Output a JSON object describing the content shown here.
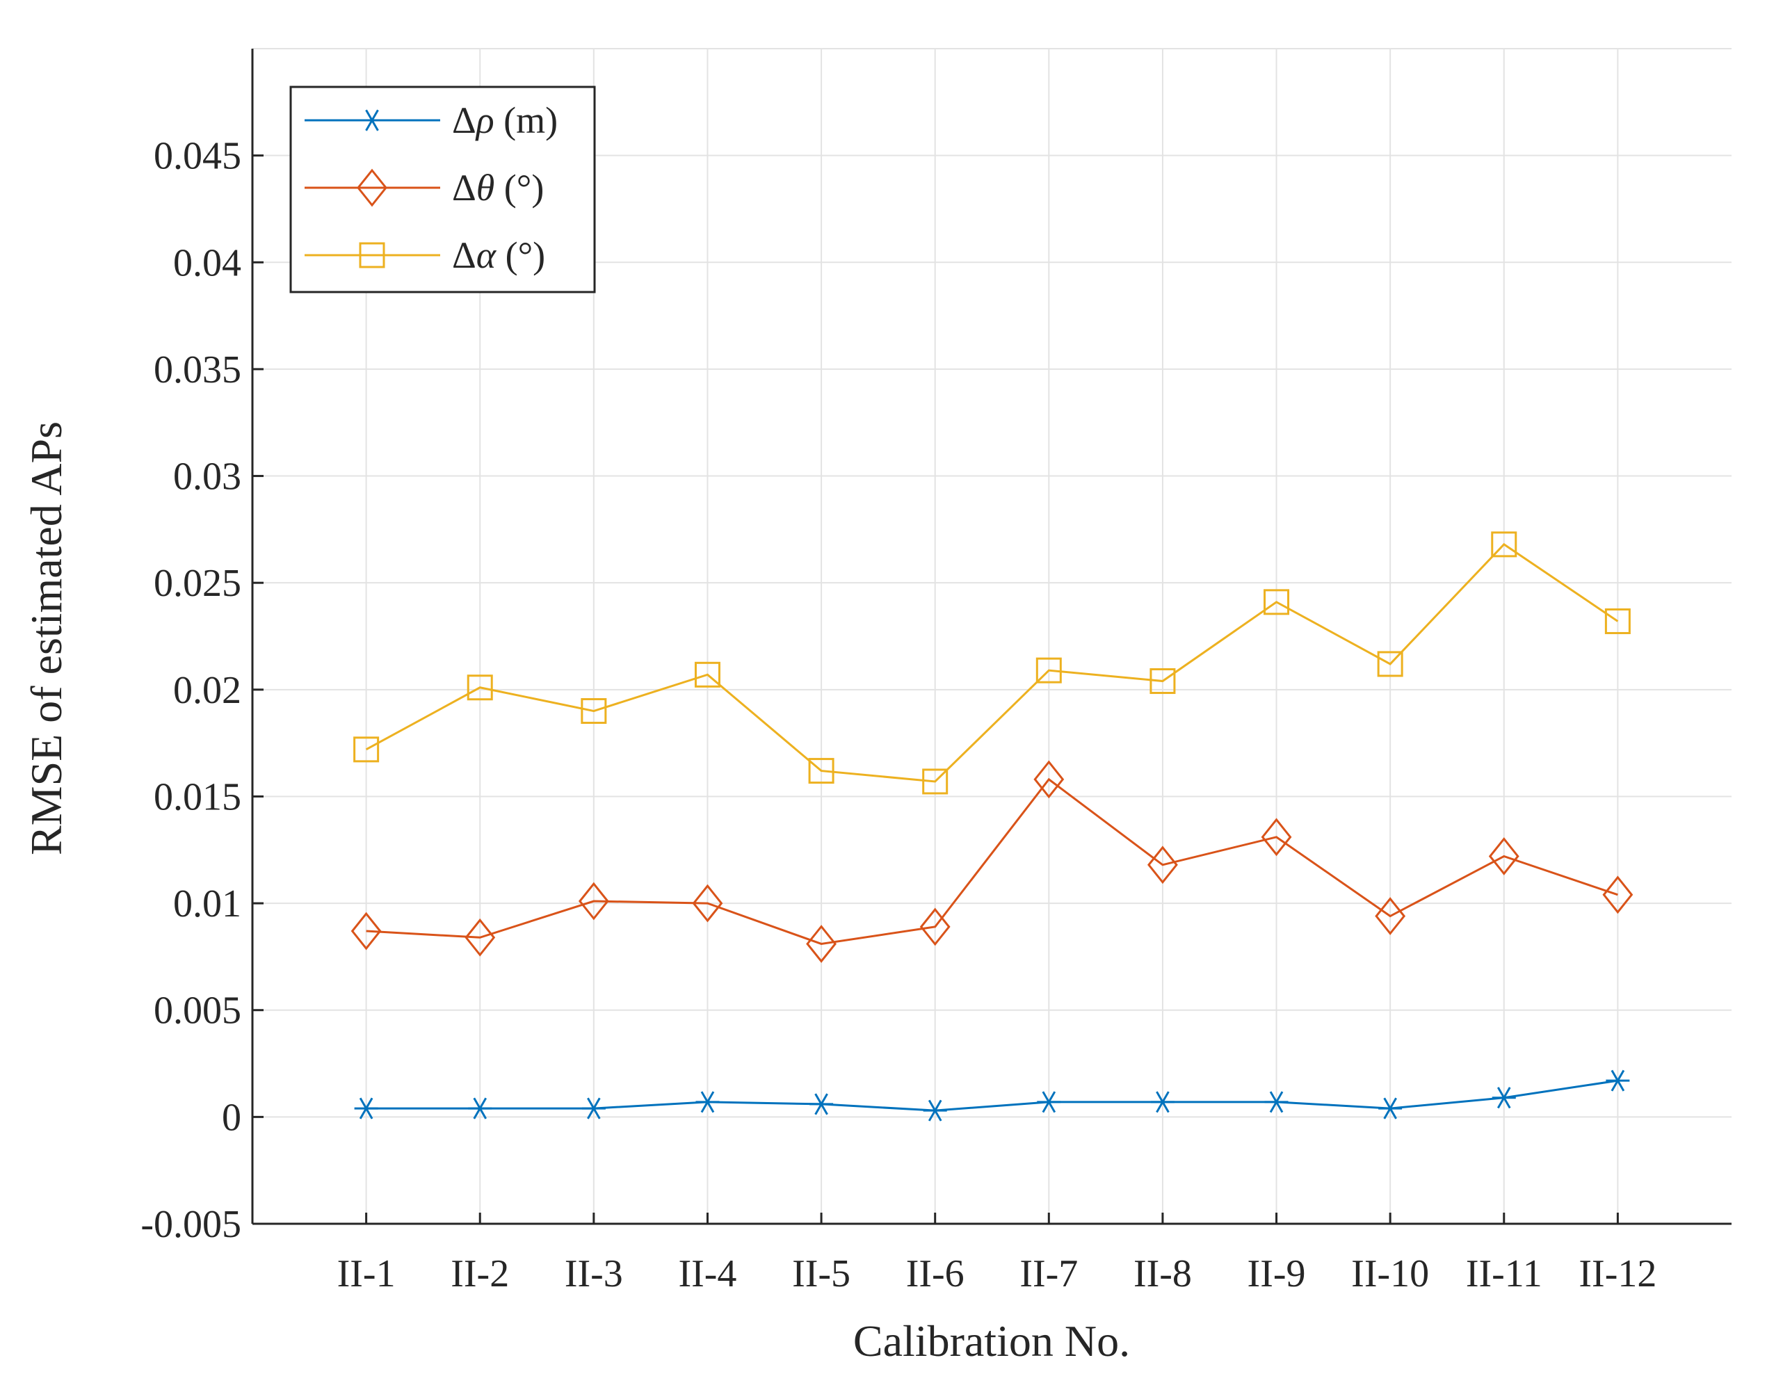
{
  "chart_data": {
    "type": "line",
    "title": "",
    "xlabel": "Calibration No.",
    "ylabel": "RMSE of estimated APs",
    "categories": [
      "II-1",
      "II-2",
      "II-3",
      "II-4",
      "II-5",
      "II-6",
      "II-7",
      "II-8",
      "II-9",
      "II-10",
      "II-11",
      "II-12"
    ],
    "ylim": [
      -0.005,
      0.05
    ],
    "yticks": [
      -0.005,
      0,
      0.005,
      0.01,
      0.015,
      0.02,
      0.025,
      0.03,
      0.035,
      0.04,
      0.045
    ],
    "ytick_labels": [
      "-0.005",
      "0",
      "0.005",
      "0.01",
      "0.015",
      "0.02",
      "0.025",
      "0.03",
      "0.035",
      "0.04",
      "0.045"
    ],
    "grid": true,
    "legend_position": "top-left",
    "series": [
      {
        "name": "Δρ (m)",
        "legend_symbol": "Δ",
        "legend_var": "ρ",
        "legend_unit": " (m)",
        "marker": "asterisk",
        "color": "#0072BD",
        "values": [
          0.0004,
          0.0004,
          0.0004,
          0.0007,
          0.0006,
          0.0003,
          0.0007,
          0.0007,
          0.0007,
          0.0004,
          0.0009,
          0.0017
        ]
      },
      {
        "name": "Δθ (°)",
        "legend_symbol": "Δ",
        "legend_var": "θ",
        "legend_unit": " (°)",
        "marker": "diamond",
        "color": "#D95319",
        "values": [
          0.0087,
          0.0084,
          0.0101,
          0.01,
          0.0081,
          0.0089,
          0.0158,
          0.0118,
          0.0131,
          0.0094,
          0.0122,
          0.0104
        ]
      },
      {
        "name": "Δα (°)",
        "legend_symbol": "Δ",
        "legend_var": "α",
        "legend_unit": " (°)",
        "marker": "square",
        "color": "#EDB120",
        "values": [
          0.0172,
          0.0201,
          0.019,
          0.0207,
          0.0162,
          0.0157,
          0.0209,
          0.0204,
          0.0241,
          0.0212,
          0.0268,
          0.0232
        ]
      }
    ]
  }
}
